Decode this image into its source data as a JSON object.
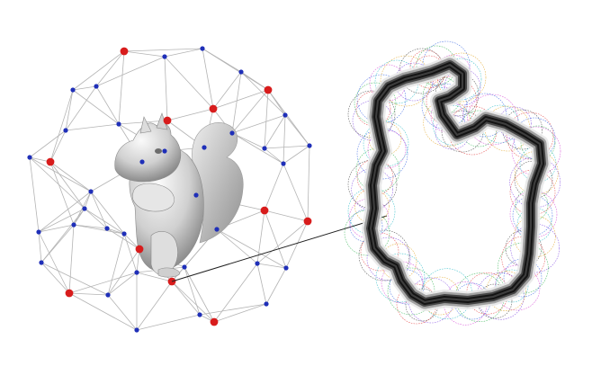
{
  "figure": {
    "left_panel": {
      "name": "sphere-sampling-rig",
      "subject_icon": "squirrel-model-icon"
    },
    "right_panel": {
      "name": "circle-rendering-stroke"
    }
  },
  "colors": {
    "background": "#ffffff",
    "edge": "#b4b4b4",
    "vertex_blue": "#1f2fb8",
    "vertex_red": "#d81c1c",
    "model_light": "#f2f2f2",
    "model_mid": "#c8c8c8",
    "model_dark": "#7a7a7a",
    "connector": "#202020",
    "stroke_core": "#141414",
    "circle_palette": [
      "#e23b3b",
      "#2bb24c",
      "#2f5fe0",
      "#d43fd4",
      "#1fb7c4",
      "#e0a21f",
      "#7a3fe0",
      "#3a3a3a"
    ]
  }
}
